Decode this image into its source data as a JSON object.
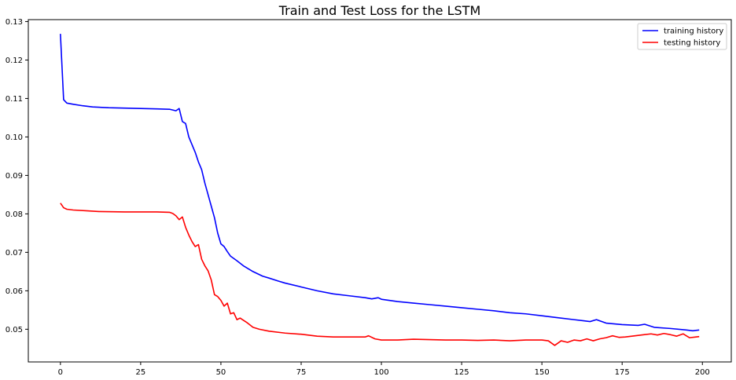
{
  "chart_data": {
    "type": "line",
    "title": "Train and Test Loss for the LSTM",
    "xlabel": "",
    "ylabel": "",
    "xlim": [
      -10,
      209
    ],
    "ylim": [
      0.0415,
      0.1305
    ],
    "x_ticks": [
      0,
      25,
      50,
      75,
      100,
      125,
      150,
      175,
      200
    ],
    "y_ticks": [
      0.05,
      0.06,
      0.07,
      0.08,
      0.09,
      0.1,
      0.11,
      0.12,
      0.13
    ],
    "grid": false,
    "legend_position": "top-right",
    "series": [
      {
        "name": "training history",
        "color": "#0000ff",
        "points": [
          [
            0,
            0.1268
          ],
          [
            1,
            0.1097
          ],
          [
            2,
            0.1088
          ],
          [
            4,
            0.1085
          ],
          [
            7,
            0.1081
          ],
          [
            10,
            0.1078
          ],
          [
            15,
            0.1076
          ],
          [
            20,
            0.1075
          ],
          [
            25,
            0.1074
          ],
          [
            30,
            0.1073
          ],
          [
            34,
            0.1072
          ],
          [
            36,
            0.1068
          ],
          [
            37,
            0.1074
          ],
          [
            38,
            0.104
          ],
          [
            39,
            0.1035
          ],
          [
            40,
            0.1
          ],
          [
            42,
            0.096
          ],
          [
            43,
            0.0935
          ],
          [
            44,
            0.0915
          ],
          [
            45,
            0.088
          ],
          [
            47,
            0.082
          ],
          [
            48,
            0.079
          ],
          [
            49,
            0.075
          ],
          [
            50,
            0.0722
          ],
          [
            51,
            0.0715
          ],
          [
            52,
            0.0702
          ],
          [
            53,
            0.069
          ],
          [
            55,
            0.0678
          ],
          [
            57,
            0.0665
          ],
          [
            60,
            0.065
          ],
          [
            63,
            0.0638
          ],
          [
            65,
            0.0633
          ],
          [
            68,
            0.0625
          ],
          [
            70,
            0.062
          ],
          [
            75,
            0.061
          ],
          [
            80,
            0.06
          ],
          [
            85,
            0.0592
          ],
          [
            90,
            0.0587
          ],
          [
            95,
            0.0582
          ],
          [
            97,
            0.0579
          ],
          [
            99,
            0.0582
          ],
          [
            100,
            0.0578
          ],
          [
            105,
            0.0572
          ],
          [
            110,
            0.0568
          ],
          [
            115,
            0.0564
          ],
          [
            120,
            0.056
          ],
          [
            125,
            0.0556
          ],
          [
            130,
            0.0552
          ],
          [
            135,
            0.0548
          ],
          [
            140,
            0.0543
          ],
          [
            145,
            0.054
          ],
          [
            150,
            0.0535
          ],
          [
            155,
            0.053
          ],
          [
            160,
            0.0525
          ],
          [
            163,
            0.0522
          ],
          [
            165,
            0.052
          ],
          [
            167,
            0.0525
          ],
          [
            170,
            0.0516
          ],
          [
            175,
            0.0512
          ],
          [
            180,
            0.051
          ],
          [
            182,
            0.0513
          ],
          [
            185,
            0.0505
          ],
          [
            190,
            0.0502
          ],
          [
            195,
            0.0498
          ],
          [
            197,
            0.0496
          ],
          [
            199,
            0.0498
          ]
        ]
      },
      {
        "name": "testing history",
        "color": "#ff0000",
        "points": [
          [
            0,
            0.0828
          ],
          [
            1,
            0.0816
          ],
          [
            2,
            0.0812
          ],
          [
            4,
            0.081
          ],
          [
            8,
            0.0808
          ],
          [
            12,
            0.0806
          ],
          [
            20,
            0.0805
          ],
          [
            25,
            0.0805
          ],
          [
            30,
            0.0805
          ],
          [
            34,
            0.0804
          ],
          [
            35,
            0.0801
          ],
          [
            36,
            0.0795
          ],
          [
            37,
            0.0785
          ],
          [
            38,
            0.0792
          ],
          [
            39,
            0.0765
          ],
          [
            40,
            0.0745
          ],
          [
            41,
            0.0728
          ],
          [
            42,
            0.0715
          ],
          [
            43,
            0.072
          ],
          [
            44,
            0.0682
          ],
          [
            45,
            0.0665
          ],
          [
            46,
            0.0652
          ],
          [
            47,
            0.0628
          ],
          [
            48,
            0.059
          ],
          [
            49,
            0.0585
          ],
          [
            50,
            0.0575
          ],
          [
            51,
            0.056
          ],
          [
            52,
            0.0568
          ],
          [
            53,
            0.054
          ],
          [
            54,
            0.0543
          ],
          [
            55,
            0.0525
          ],
          [
            56,
            0.0529
          ],
          [
            58,
            0.0518
          ],
          [
            60,
            0.0505
          ],
          [
            62,
            0.05
          ],
          [
            65,
            0.0495
          ],
          [
            70,
            0.049
          ],
          [
            75,
            0.0487
          ],
          [
            80,
            0.0482
          ],
          [
            85,
            0.048
          ],
          [
            90,
            0.048
          ],
          [
            95,
            0.048
          ],
          [
            96,
            0.0483
          ],
          [
            98,
            0.0475
          ],
          [
            100,
            0.0472
          ],
          [
            105,
            0.0472
          ],
          [
            110,
            0.0474
          ],
          [
            115,
            0.0473
          ],
          [
            120,
            0.0472
          ],
          [
            125,
            0.0472
          ],
          [
            130,
            0.0471
          ],
          [
            135,
            0.0472
          ],
          [
            140,
            0.047
          ],
          [
            145,
            0.0472
          ],
          [
            150,
            0.0472
          ],
          [
            152,
            0.047
          ],
          [
            154,
            0.0458
          ],
          [
            156,
            0.047
          ],
          [
            158,
            0.0466
          ],
          [
            160,
            0.0472
          ],
          [
            162,
            0.047
          ],
          [
            164,
            0.0475
          ],
          [
            166,
            0.047
          ],
          [
            168,
            0.0475
          ],
          [
            170,
            0.0478
          ],
          [
            172,
            0.0483
          ],
          [
            174,
            0.0479
          ],
          [
            176,
            0.048
          ],
          [
            178,
            0.0482
          ],
          [
            180,
            0.0484
          ],
          [
            182,
            0.0486
          ],
          [
            184,
            0.0488
          ],
          [
            186,
            0.0485
          ],
          [
            188,
            0.0489
          ],
          [
            190,
            0.0486
          ],
          [
            192,
            0.0482
          ],
          [
            194,
            0.0488
          ],
          [
            196,
            0.0478
          ],
          [
            198,
            0.048
          ],
          [
            199,
            0.0481
          ]
        ]
      }
    ]
  }
}
